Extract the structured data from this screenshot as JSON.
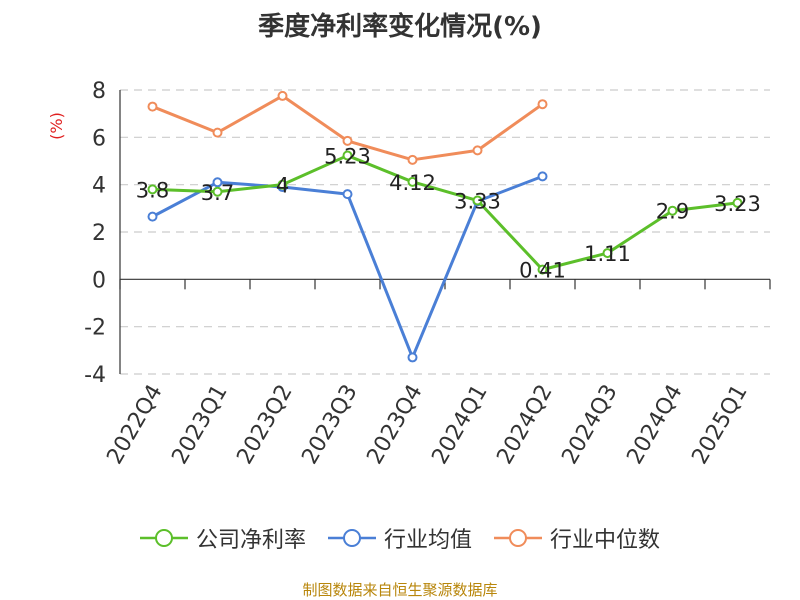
{
  "title": "季度净利率变化情况(%)",
  "footer": "制图数据来自恒生聚源数据库",
  "chart_data": {
    "type": "line",
    "title": "季度净利率变化情况(%)",
    "ylabel": "(%)",
    "ylim": [
      -4,
      8
    ],
    "yticks": [
      -4,
      -2,
      0,
      2,
      4,
      6,
      8
    ],
    "grid": true,
    "legend_position": "bottom",
    "categories": [
      "2022Q4",
      "2023Q1",
      "2023Q2",
      "2023Q3",
      "2023Q4",
      "2024Q1",
      "2024Q2",
      "2024Q3",
      "2024Q4",
      "2025Q1"
    ],
    "series": [
      {
        "name": "公司净利率",
        "color": "#5cbf2a",
        "values": [
          3.8,
          3.7,
          4,
          5.23,
          4.12,
          3.33,
          0.41,
          1.11,
          2.9,
          3.23
        ],
        "labels": [
          "3.8",
          "3.7",
          "4",
          "5.23",
          "4.12",
          "3.33",
          "0.41",
          "1.11",
          "2.9",
          "3.23"
        ]
      },
      {
        "name": "行业均值",
        "color": "#4a7fd6",
        "values": [
          2.65,
          4.1,
          3.9,
          3.6,
          -3.3,
          3.3,
          4.35,
          null,
          null,
          null
        ]
      },
      {
        "name": "行业中位数",
        "color": "#f08c5a",
        "values": [
          7.3,
          6.2,
          7.75,
          5.85,
          5.05,
          5.45,
          7.4,
          null,
          null,
          null
        ]
      }
    ]
  }
}
